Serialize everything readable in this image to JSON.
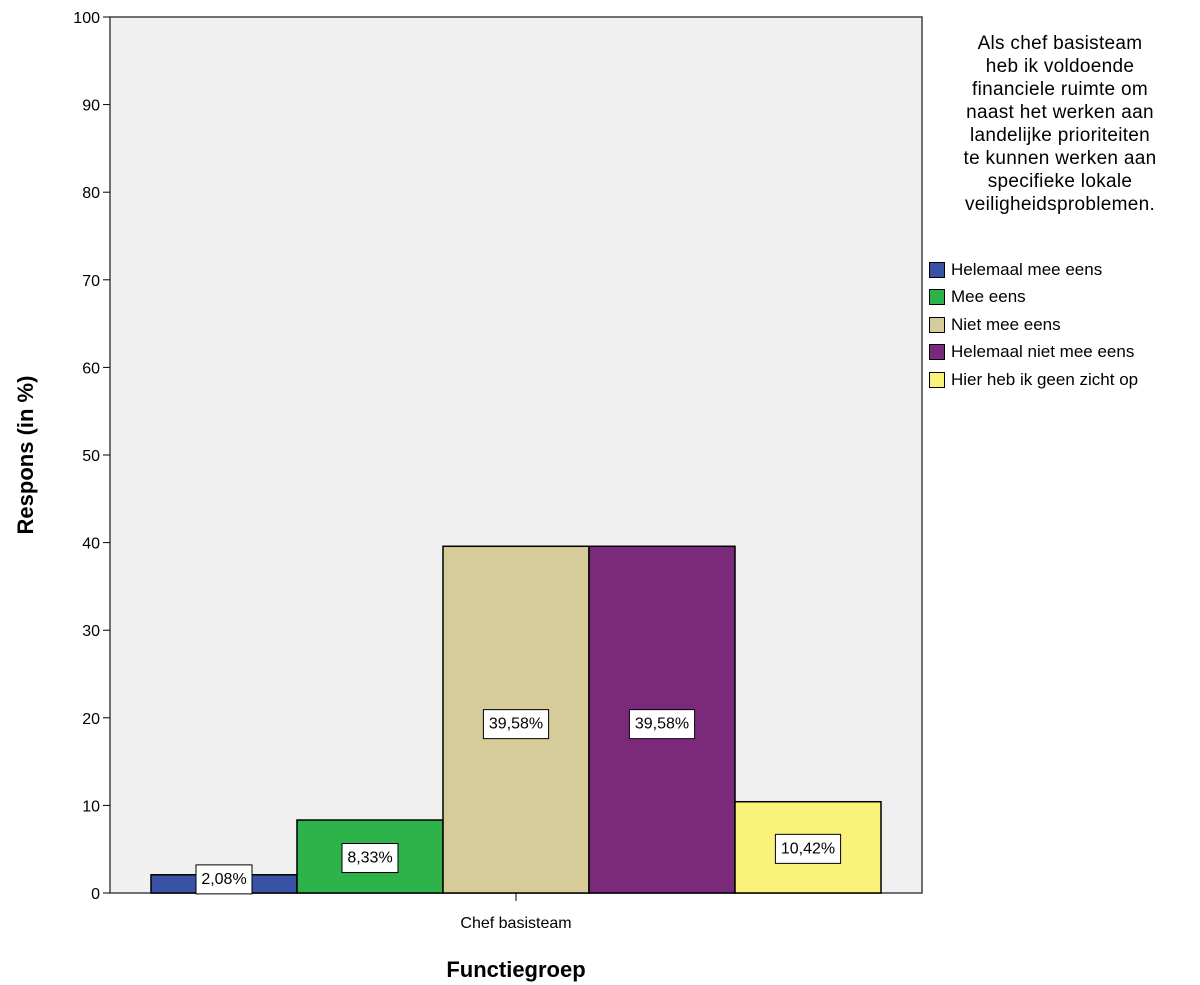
{
  "chart_data": {
    "type": "bar",
    "categories": [
      "Chef basisteam"
    ],
    "series": [
      {
        "name": "Helemaal mee eens",
        "values": [
          2.08
        ],
        "label": "2,08%",
        "color": "#3a52a4"
      },
      {
        "name": "Mee eens",
        "values": [
          8.33
        ],
        "label": "8,33%",
        "color": "#2eb24a"
      },
      {
        "name": "Niet mee eens",
        "values": [
          39.58
        ],
        "label": "39,58%",
        "color": "#d5cc9a"
      },
      {
        "name": "Helemaal niet mee eens",
        "values": [
          39.58
        ],
        "label": "39,58%",
        "color": "#7b2a7b"
      },
      {
        "name": "Hier heb ik geen zicht op",
        "values": [
          10.42
        ],
        "label": "10,42%",
        "color": "#fbf27b"
      }
    ],
    "xlabel": "Functiegroep",
    "ylabel": "Respons (in %)",
    "ylim": [
      0,
      100
    ],
    "yticks": [
      "0",
      "10",
      "20",
      "30",
      "40",
      "50",
      "60",
      "70",
      "80",
      "90",
      "100"
    ],
    "grid": false,
    "plot_background": "#f0f0f0",
    "legend": {
      "title": "Als chef basisteam\nheb ik voldoende\nfinanciele ruimte om\nnaast het werken aan\nlandelijke prioriteiten\nte kunnen werken aan\nspecifieke lokale\nveiligheidsproblemen.",
      "placement": "right"
    }
  }
}
